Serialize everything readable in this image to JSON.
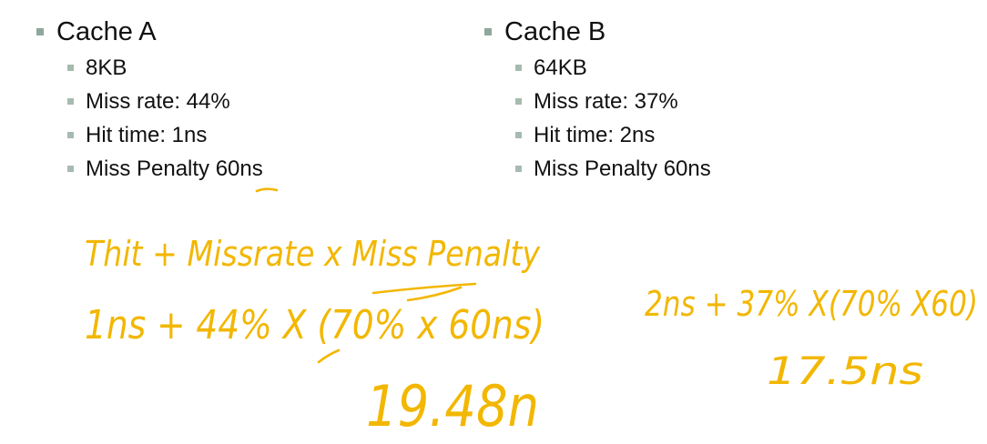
{
  "cache_a": {
    "title": "Cache A",
    "items": [
      {
        "text": "8KB"
      },
      {
        "text": "Miss rate: 44%"
      },
      {
        "text": "Hit time: 1ns"
      },
      {
        "text": "Miss Penalty 60ns"
      }
    ]
  },
  "cache_b": {
    "title": "Cache B",
    "items": [
      {
        "text": "64KB"
      },
      {
        "text": "Miss rate: 37%"
      },
      {
        "text": "Hit time: 2ns"
      },
      {
        "text": "Miss Penalty 60ns"
      }
    ]
  },
  "annotations": {
    "formula": "Thit + Missrate x Miss Penalty",
    "calc_a": "1ns + 44% X (70% x 60ns)",
    "result_a": "19.48n",
    "calc_b": "2ns + 37% X(70% X60)",
    "result_b": "17.5ns"
  },
  "colors": {
    "ink": "#f2b700",
    "bullet": "#8fa89b",
    "text": "#111111"
  }
}
